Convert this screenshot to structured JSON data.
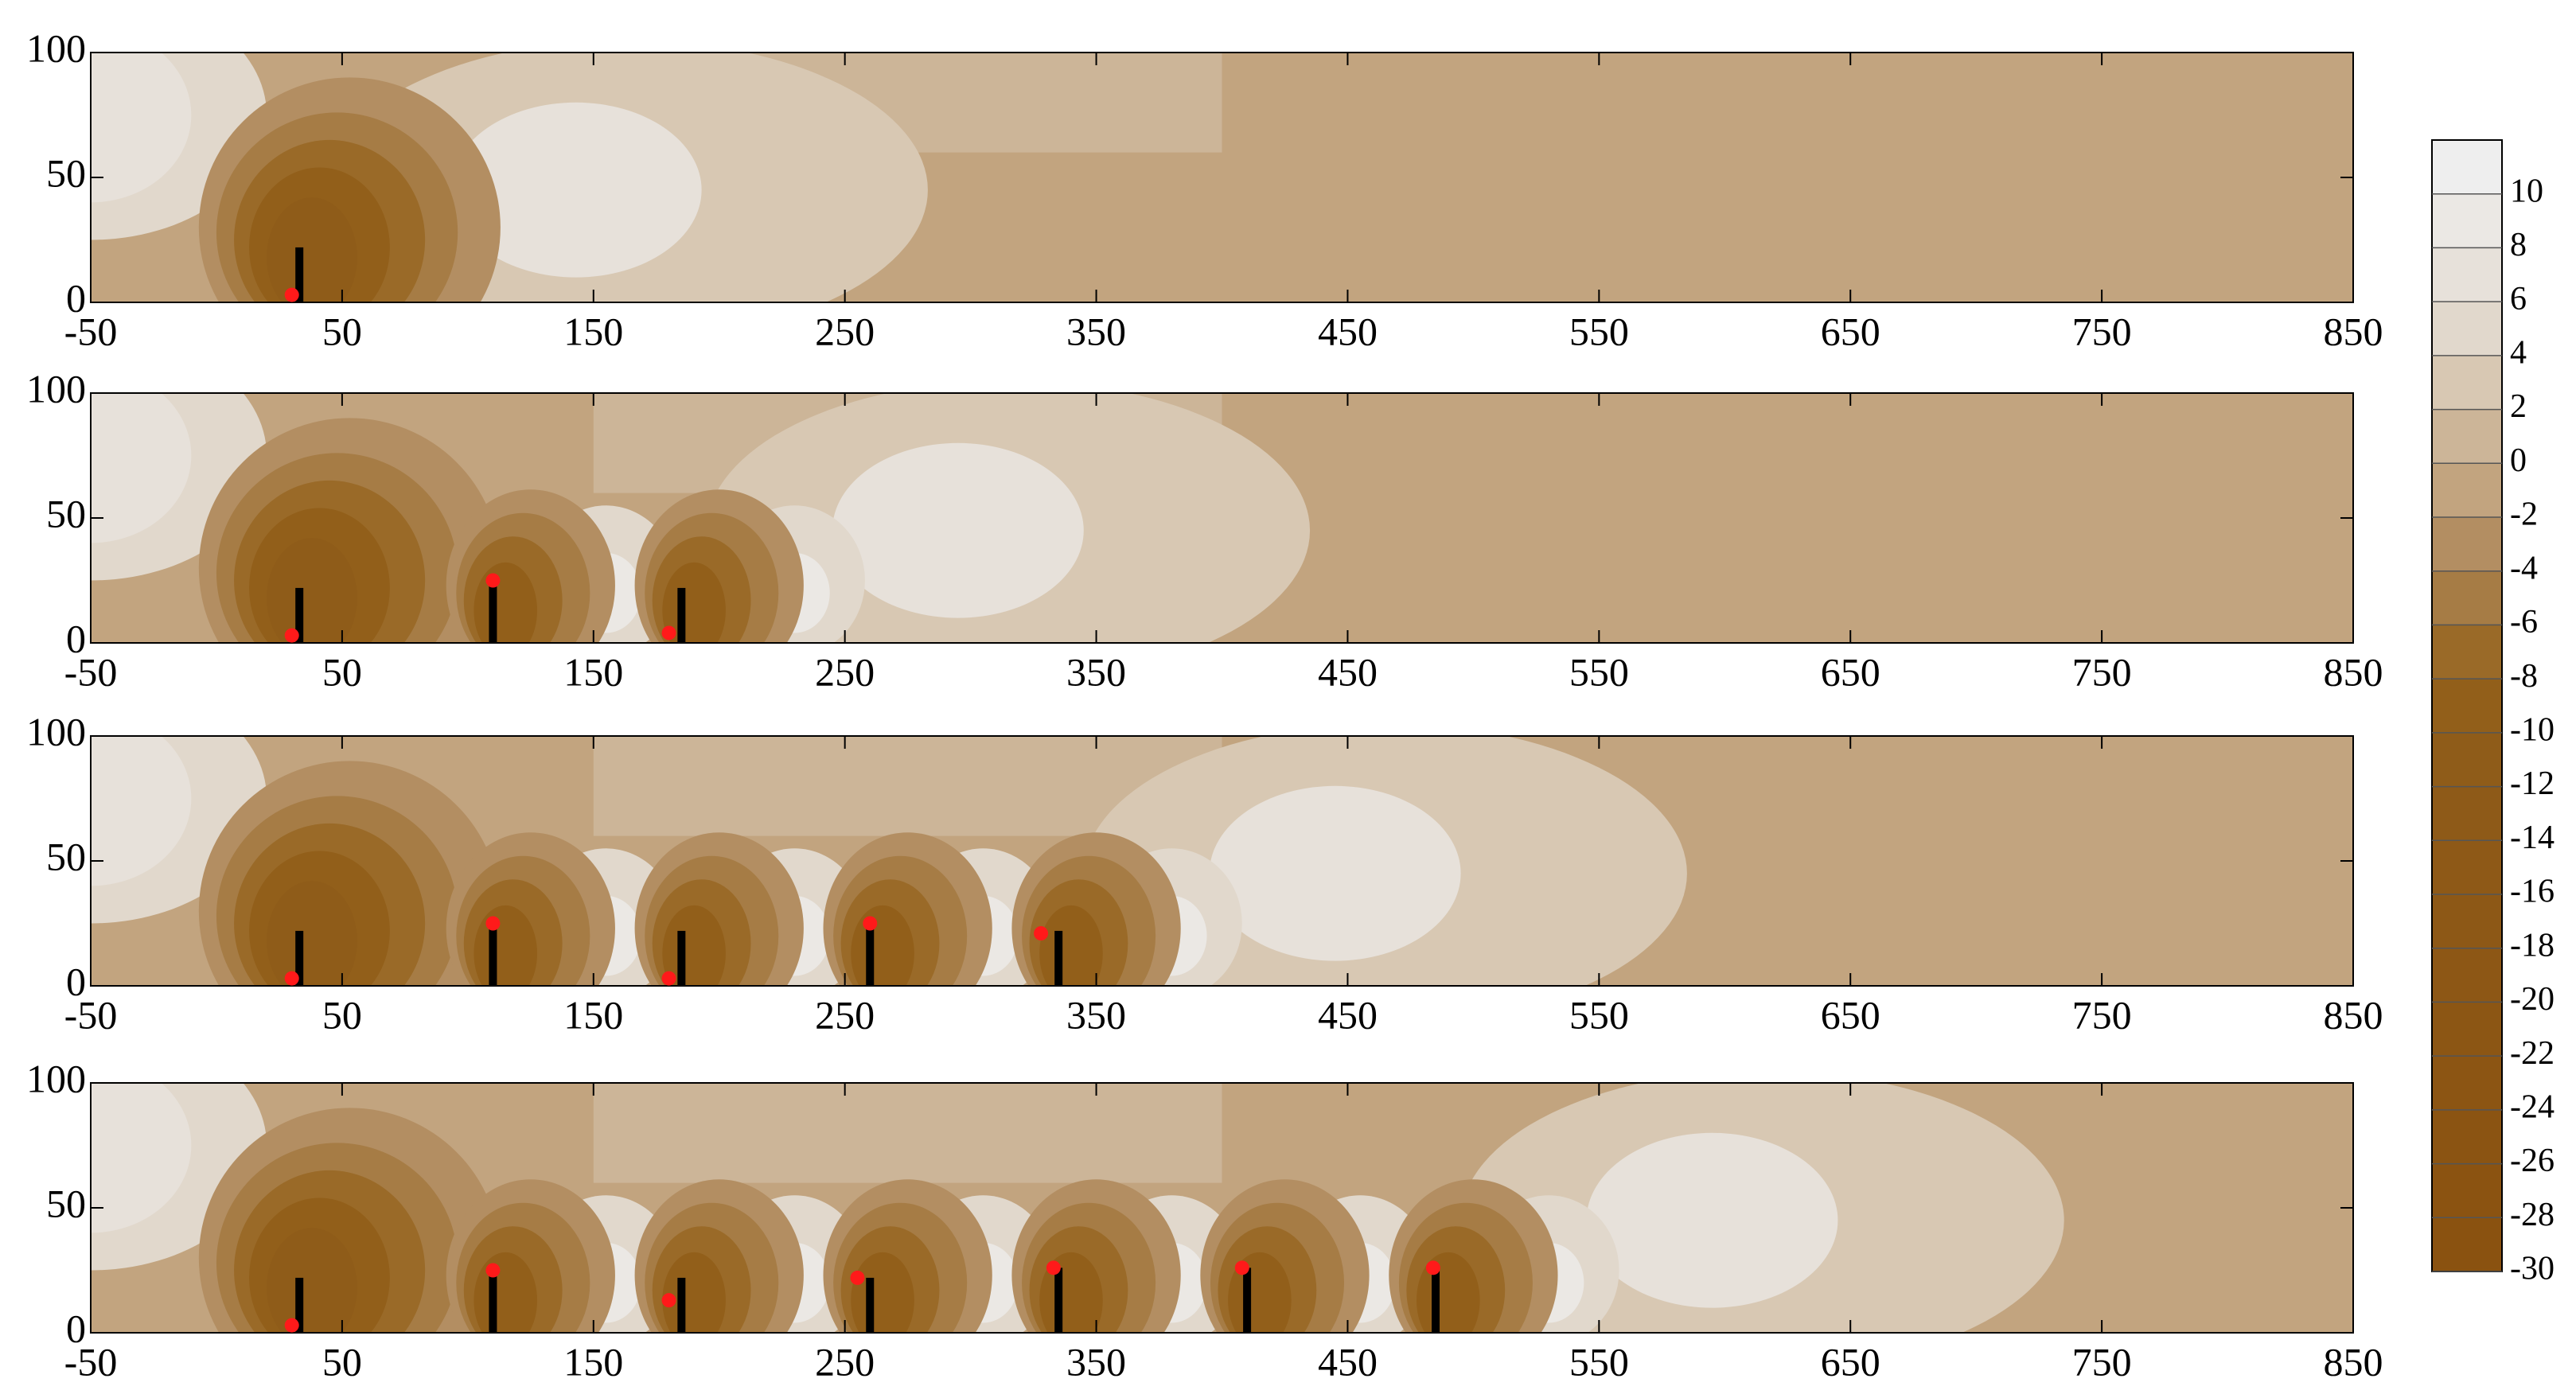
{
  "chart_data": [
    {
      "type": "contour",
      "xlim": [
        -50,
        850
      ],
      "xticks": [
        -50,
        50,
        150,
        250,
        350,
        450,
        550,
        650,
        750,
        850
      ],
      "ylim": [
        0,
        100
      ],
      "yticks": [
        0,
        50,
        100
      ],
      "towers": {
        "x": [
          33
        ],
        "height": [
          22
        ]
      },
      "points": {
        "x": [
          30
        ],
        "y": [
          3
        ]
      }
    },
    {
      "type": "contour",
      "xlim": [
        -50,
        850
      ],
      "xticks": [
        -50,
        50,
        150,
        250,
        350,
        450,
        550,
        650,
        750,
        850
      ],
      "ylim": [
        0,
        100
      ],
      "yticks": [
        0,
        50,
        100
      ],
      "towers": {
        "x": [
          33,
          110,
          185
        ],
        "height": [
          22,
          25,
          22
        ]
      },
      "points": {
        "x": [
          30,
          110,
          180
        ],
        "y": [
          3,
          25,
          4
        ]
      }
    },
    {
      "type": "contour",
      "xlim": [
        -50,
        850
      ],
      "xticks": [
        -50,
        50,
        150,
        250,
        350,
        450,
        550,
        650,
        750,
        850
      ],
      "ylim": [
        0,
        100
      ],
      "yticks": [
        0,
        50,
        100
      ],
      "towers": {
        "x": [
          33,
          110,
          185,
          260,
          335
        ],
        "height": [
          22,
          25,
          22,
          25,
          22
        ]
      },
      "points": {
        "x": [
          30,
          110,
          180,
          260,
          328
        ],
        "y": [
          3,
          25,
          3,
          25,
          21
        ]
      }
    },
    {
      "type": "contour",
      "xlim": [
        -50,
        850
      ],
      "xticks": [
        -50,
        50,
        150,
        250,
        350,
        450,
        550,
        650,
        750,
        850
      ],
      "ylim": [
        0,
        100
      ],
      "yticks": [
        0,
        50,
        100
      ],
      "towers": {
        "x": [
          33,
          110,
          185,
          260,
          335,
          410,
          485
        ],
        "height": [
          22,
          25,
          22,
          22,
          26,
          26,
          26
        ]
      },
      "points": {
        "x": [
          30,
          110,
          180,
          255,
          333,
          408,
          484
        ],
        "y": [
          3,
          25,
          13,
          22,
          26,
          26,
          26
        ]
      }
    }
  ],
  "tower_color": "#000000",
  "point_color": "#ff1a1a",
  "colorbar": {
    "lim": [
      -30,
      12
    ],
    "ticks": [
      -30,
      -28,
      -26,
      -24,
      -22,
      -20,
      -18,
      -16,
      -14,
      -12,
      -10,
      -8,
      -6,
      -4,
      -2,
      0,
      2,
      4,
      6,
      8,
      10
    ],
    "colors": [
      "#8a5210",
      "#8b5311",
      "#8b5412",
      "#8c5513",
      "#8c5614",
      "#8d5715",
      "#8d5816",
      "#8e5917",
      "#8e5a18",
      "#8f5c19",
      "#925f1a",
      "#9a6a28",
      "#a67c45",
      "#b38e62",
      "#c2a47f",
      "#ccb598",
      "#d8c8b3",
      "#e1d8cc",
      "#e7e1da",
      "#ebe8e4",
      "#eeeeee"
    ]
  }
}
